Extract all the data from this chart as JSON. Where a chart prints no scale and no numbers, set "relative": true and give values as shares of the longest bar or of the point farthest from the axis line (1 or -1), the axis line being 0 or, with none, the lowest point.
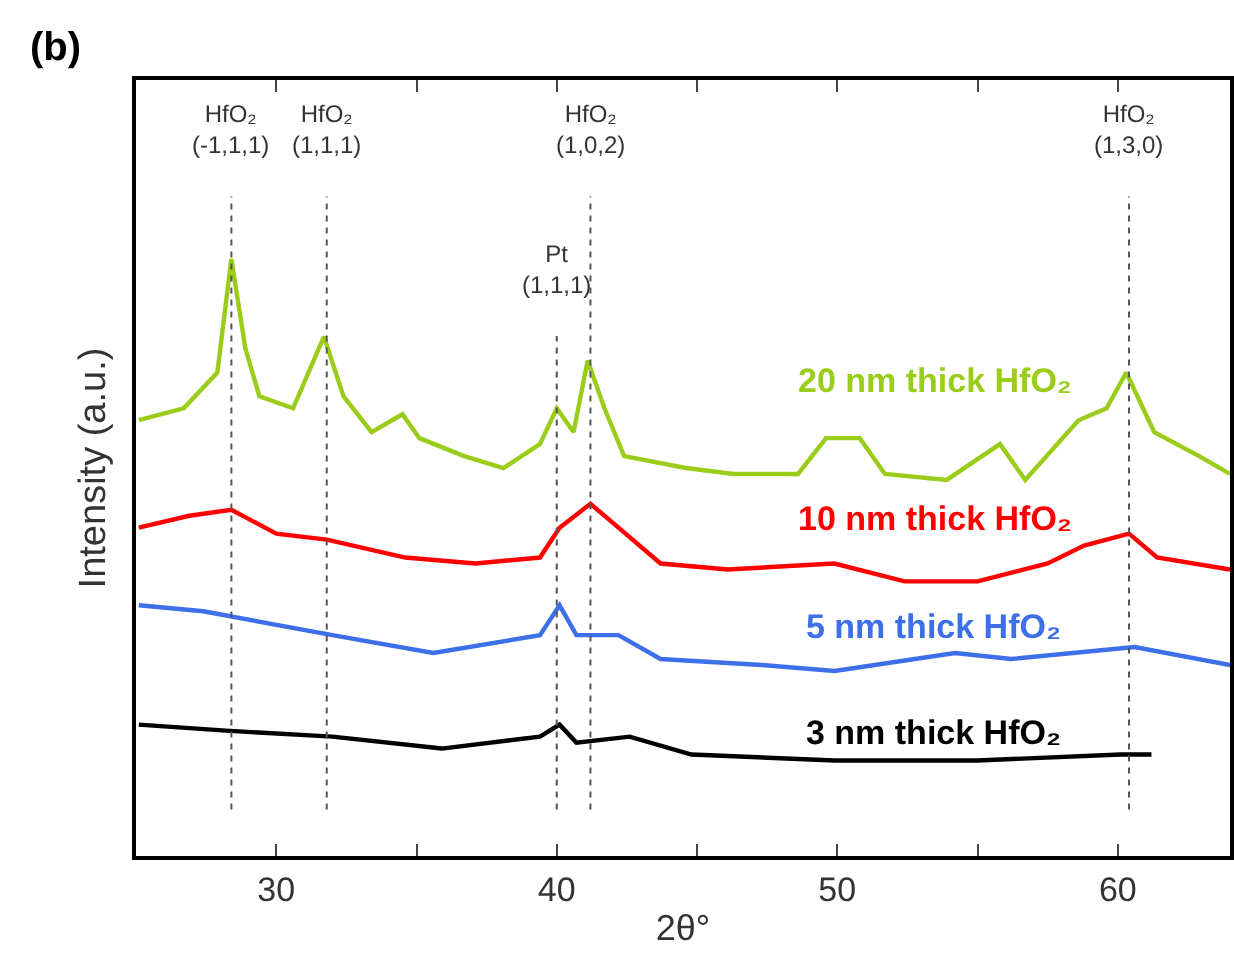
{
  "chart_data": {
    "type": "line",
    "relative": true,
    "xlabel": "2θ°",
    "ylabel": "Intensity (a.u.)",
    "annotations": [
      "(b)"
    ],
    "xlim": [
      25,
      64
    ],
    "xticks": [
      30,
      {
        "value": 35,
        "label": null
      },
      40,
      {
        "value": 45,
        "label": null
      },
      50,
      {
        "value": 55,
        "label": null
      },
      60
    ],
    "grid": false,
    "legend": false,
    "marker": "none",
    "line_style": "solid",
    "ref_lines": [
      {
        "axis": "x",
        "value": 28.4,
        "label": "HfO₂\n(-1,1,1)",
        "line_style": "dotted"
      },
      {
        "axis": "x",
        "value": 31.8,
        "label": "HfO₂\n(1,1,1)",
        "line_style": "dotted"
      },
      {
        "axis": "x",
        "value": 40.0,
        "label": "Pt\n(1,1,1)",
        "line_style": "dotted"
      },
      {
        "axis": "x",
        "value": 41.2,
        "label": "HfO₂\n(1,0,2)",
        "line_style": "dotted"
      },
      {
        "axis": "x",
        "value": 60.4,
        "label": "HfO₂\n(1,3,0)",
        "line_style": "dotted"
      }
    ],
    "series": [
      {
        "name": "20 nm thick HfO₂",
        "color": "#9acd1a",
        "x": [
          25.1,
          26.7,
          27.9,
          28.4,
          28.9,
          29.4,
          30.6,
          31.7,
          32.4,
          33.4,
          34.5,
          35.1,
          36.7,
          38.1,
          39.4,
          40.0,
          40.6,
          41.1,
          41.7,
          42.4,
          44.6,
          46.3,
          48.6,
          49.6,
          50.8,
          51.7,
          53.9,
          55.8,
          56.7,
          58.6,
          59.6,
          60.3,
          61.3,
          62.9,
          64.0
        ],
        "values": [
          0.73,
          0.75,
          0.81,
          1.0,
          0.85,
          0.77,
          0.75,
          0.87,
          0.77,
          0.71,
          0.74,
          0.7,
          0.67,
          0.65,
          0.69,
          0.75,
          0.71,
          0.83,
          0.75,
          0.67,
          0.65,
          0.64,
          0.64,
          0.7,
          0.7,
          0.64,
          0.63,
          0.69,
          0.63,
          0.73,
          0.75,
          0.81,
          0.71,
          0.67,
          0.64
        ]
      },
      {
        "name": "10 nm thick HfO₂",
        "color": "#ff0000",
        "x": [
          25.1,
          26.9,
          28.4,
          30.0,
          31.8,
          34.6,
          37.1,
          39.4,
          40.1,
          41.2,
          42.2,
          43.7,
          46.1,
          49.9,
          52.4,
          55.0,
          57.5,
          58.8,
          60.4,
          61.4,
          64.0
        ],
        "values": [
          0.55,
          0.57,
          0.58,
          0.54,
          0.53,
          0.5,
          0.49,
          0.5,
          0.55,
          0.59,
          0.55,
          0.49,
          0.48,
          0.49,
          0.46,
          0.46,
          0.49,
          0.52,
          0.54,
          0.5,
          0.48
        ]
      },
      {
        "name": "5 nm thick HfO₂",
        "color": "#3d6fe8",
        "x": [
          25.1,
          27.4,
          32.0,
          35.6,
          39.4,
          40.1,
          40.7,
          42.2,
          43.7,
          47.3,
          49.9,
          54.2,
          56.2,
          60.6,
          64.0
        ],
        "values": [
          0.42,
          0.41,
          0.37,
          0.34,
          0.37,
          0.42,
          0.37,
          0.37,
          0.33,
          0.32,
          0.31,
          0.34,
          0.33,
          0.35,
          0.32
        ]
      },
      {
        "name": "3 nm thick HfO₂",
        "color": "#000000",
        "x": [
          25.1,
          28.2,
          32.0,
          35.9,
          39.4,
          40.1,
          40.7,
          42.6,
          44.8,
          49.9,
          55.0,
          60.1,
          61.2
        ],
        "values": [
          0.22,
          0.21,
          0.2,
          0.18,
          0.2,
          0.22,
          0.19,
          0.2,
          0.17,
          0.16,
          0.16,
          0.17,
          0.17
        ]
      }
    ]
  }
}
